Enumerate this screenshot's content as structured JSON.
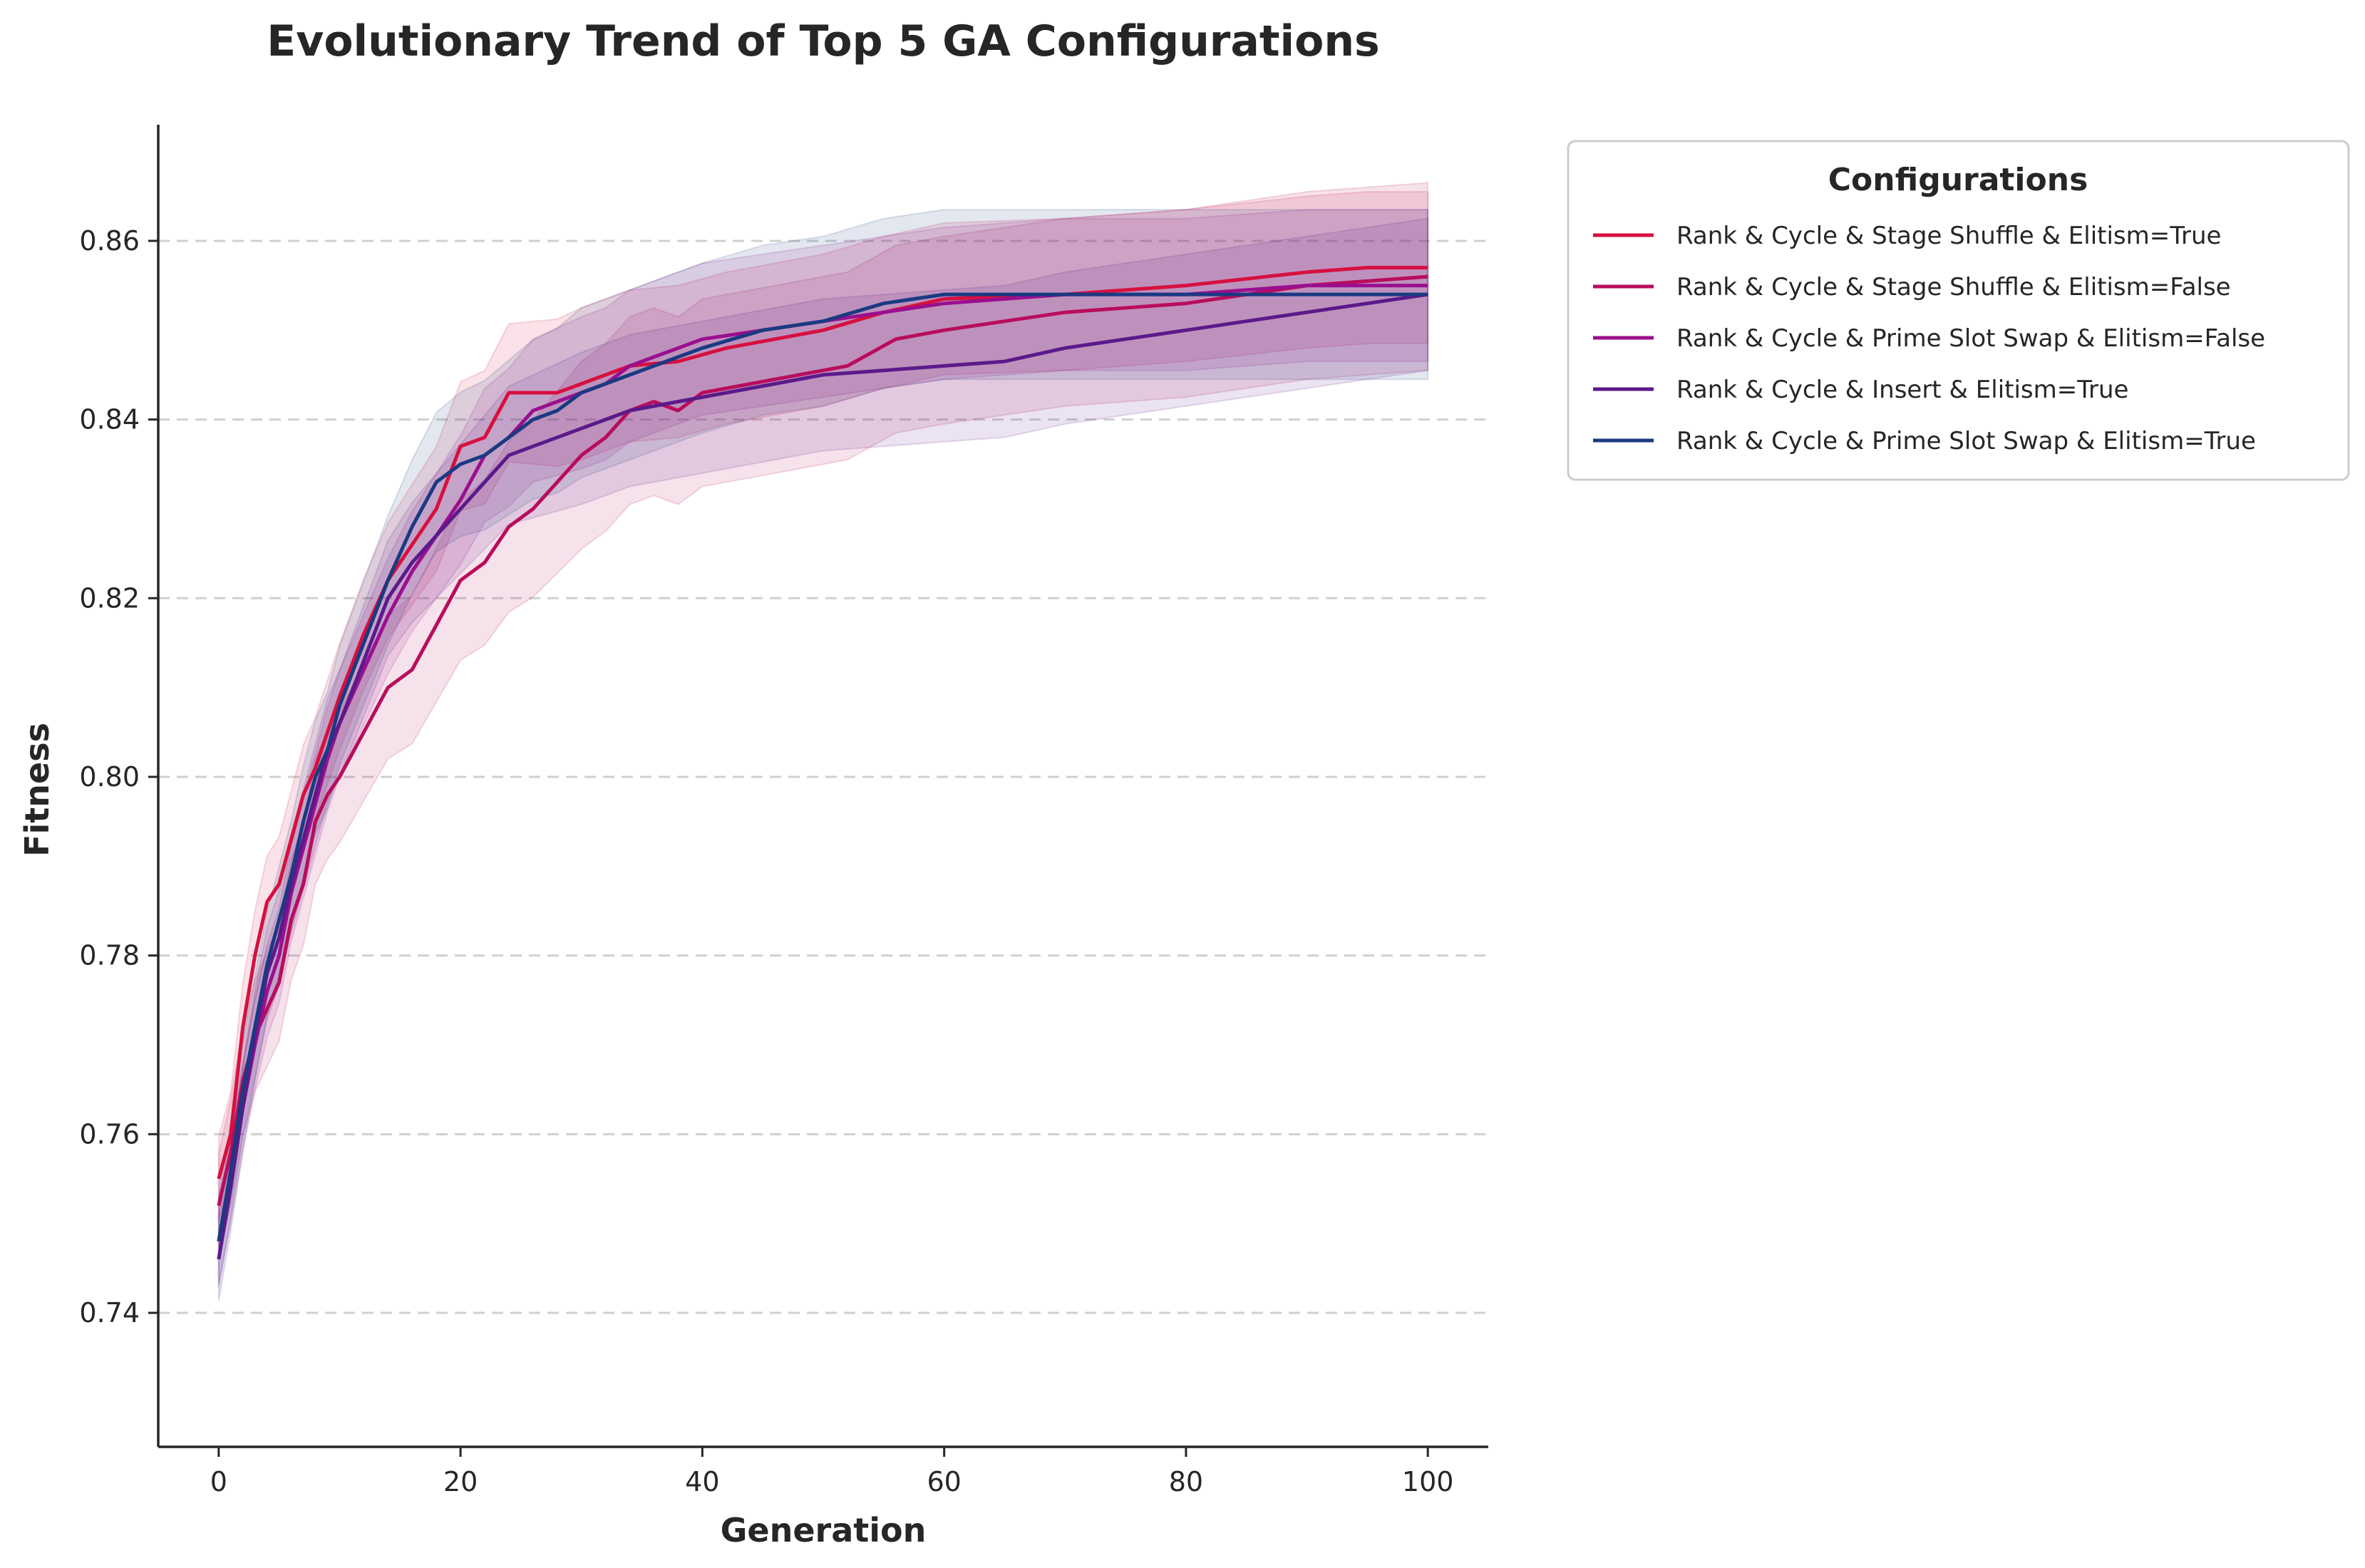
{
  "chart_data": {
    "type": "line",
    "title": "Evolutionary Trend of Top 5 GA Configurations",
    "xlabel": "Generation",
    "ylabel": "Fitness",
    "xlim": [
      -5,
      105
    ],
    "ylim": [
      0.725,
      0.873
    ],
    "xticks": [
      0,
      20,
      40,
      60,
      80,
      100
    ],
    "yticks": [
      0.74,
      0.76,
      0.78,
      0.8,
      0.82,
      0.84,
      0.86
    ],
    "xtick_labels": [
      "0",
      "20",
      "40",
      "60",
      "80",
      "100"
    ],
    "ytick_labels": [
      "0.74",
      "0.76",
      "0.78",
      "0.80",
      "0.82",
      "0.84",
      "0.86"
    ],
    "grid": "horizontal dashed",
    "legend": {
      "title": "Configurations",
      "placement": "outside upper right"
    },
    "bands": "shaded range around each series",
    "series": [
      {
        "name": "Rank & Cycle & Stage Shuffle & Elitism=True",
        "color": "#d6103f",
        "band_halfwidth": 0.0085,
        "x": [
          0,
          1,
          2,
          3,
          4,
          5,
          6,
          7,
          8,
          9,
          10,
          12,
          14,
          16,
          18,
          20,
          22,
          24,
          26,
          28,
          30,
          34,
          38,
          42,
          46,
          50,
          55,
          60,
          70,
          80,
          90,
          95,
          100
        ],
        "y": [
          0.755,
          0.76,
          0.772,
          0.78,
          0.786,
          0.788,
          0.793,
          0.798,
          0.801,
          0.805,
          0.809,
          0.816,
          0.822,
          0.826,
          0.83,
          0.837,
          0.838,
          0.843,
          0.843,
          0.843,
          0.844,
          0.846,
          0.8465,
          0.848,
          0.849,
          0.85,
          0.852,
          0.8535,
          0.854,
          0.855,
          0.8565,
          0.857,
          0.857
        ]
      },
      {
        "name": "Rank & Cycle & Stage Shuffle & Elitism=False",
        "color": "#b80d5c",
        "band_halfwidth": 0.0105,
        "x": [
          0,
          1,
          2,
          3,
          4,
          5,
          6,
          7,
          8,
          9,
          10,
          12,
          14,
          16,
          18,
          20,
          22,
          24,
          26,
          28,
          30,
          32,
          34,
          36,
          38,
          40,
          44,
          48,
          52,
          56,
          60,
          65,
          70,
          80,
          90,
          100
        ],
        "y": [
          0.752,
          0.758,
          0.766,
          0.771,
          0.774,
          0.777,
          0.784,
          0.788,
          0.795,
          0.798,
          0.8,
          0.805,
          0.81,
          0.812,
          0.817,
          0.822,
          0.824,
          0.828,
          0.83,
          0.833,
          0.836,
          0.838,
          0.841,
          0.842,
          0.841,
          0.843,
          0.844,
          0.845,
          0.846,
          0.849,
          0.85,
          0.851,
          0.852,
          0.853,
          0.855,
          0.856
        ]
      },
      {
        "name": "Rank & Cycle & Prime Slot Swap & Elitism=False",
        "color": "#9a0f8f",
        "band_halfwidth": 0.0085,
        "x": [
          0,
          1,
          2,
          3,
          4,
          5,
          6,
          7,
          8,
          9,
          10,
          12,
          14,
          16,
          18,
          20,
          22,
          24,
          26,
          28,
          30,
          32,
          34,
          36,
          40,
          45,
          50,
          55,
          60,
          70,
          80,
          90,
          100
        ],
        "y": [
          0.748,
          0.755,
          0.763,
          0.77,
          0.776,
          0.78,
          0.787,
          0.792,
          0.797,
          0.802,
          0.806,
          0.812,
          0.818,
          0.823,
          0.827,
          0.831,
          0.836,
          0.838,
          0.841,
          0.842,
          0.843,
          0.844,
          0.846,
          0.847,
          0.849,
          0.85,
          0.851,
          0.852,
          0.853,
          0.854,
          0.854,
          0.855,
          0.855
        ]
      },
      {
        "name": "Rank & Cycle & Insert & Elitism=True",
        "color": "#5b1a8a",
        "band_halfwidth": 0.0085,
        "x": [
          0,
          1,
          2,
          3,
          4,
          5,
          6,
          7,
          8,
          9,
          10,
          12,
          14,
          16,
          18,
          20,
          22,
          24,
          26,
          28,
          30,
          34,
          38,
          42,
          46,
          50,
          55,
          60,
          65,
          70,
          75,
          80,
          85,
          90,
          95,
          100
        ],
        "y": [
          0.746,
          0.754,
          0.763,
          0.771,
          0.778,
          0.782,
          0.788,
          0.793,
          0.798,
          0.803,
          0.806,
          0.813,
          0.82,
          0.824,
          0.827,
          0.83,
          0.833,
          0.836,
          0.837,
          0.838,
          0.839,
          0.841,
          0.842,
          0.843,
          0.844,
          0.845,
          0.8455,
          0.846,
          0.8465,
          0.848,
          0.849,
          0.85,
          0.851,
          0.852,
          0.853,
          0.854
        ]
      },
      {
        "name": "Rank & Cycle & Prime Slot Swap & Elitism=True",
        "color": "#1a3a82",
        "band_halfwidth": 0.0095,
        "x": [
          0,
          1,
          2,
          3,
          4,
          5,
          6,
          7,
          8,
          9,
          10,
          12,
          14,
          16,
          18,
          20,
          22,
          24,
          26,
          28,
          30,
          32,
          34,
          36,
          38,
          40,
          45,
          50,
          55,
          60,
          70,
          80,
          90,
          100
        ],
        "y": [
          0.748,
          0.756,
          0.765,
          0.772,
          0.779,
          0.784,
          0.789,
          0.795,
          0.8,
          0.803,
          0.808,
          0.815,
          0.822,
          0.828,
          0.833,
          0.835,
          0.836,
          0.838,
          0.84,
          0.841,
          0.843,
          0.844,
          0.845,
          0.846,
          0.847,
          0.848,
          0.85,
          0.851,
          0.853,
          0.854,
          0.854,
          0.854,
          0.854,
          0.854
        ]
      }
    ]
  }
}
